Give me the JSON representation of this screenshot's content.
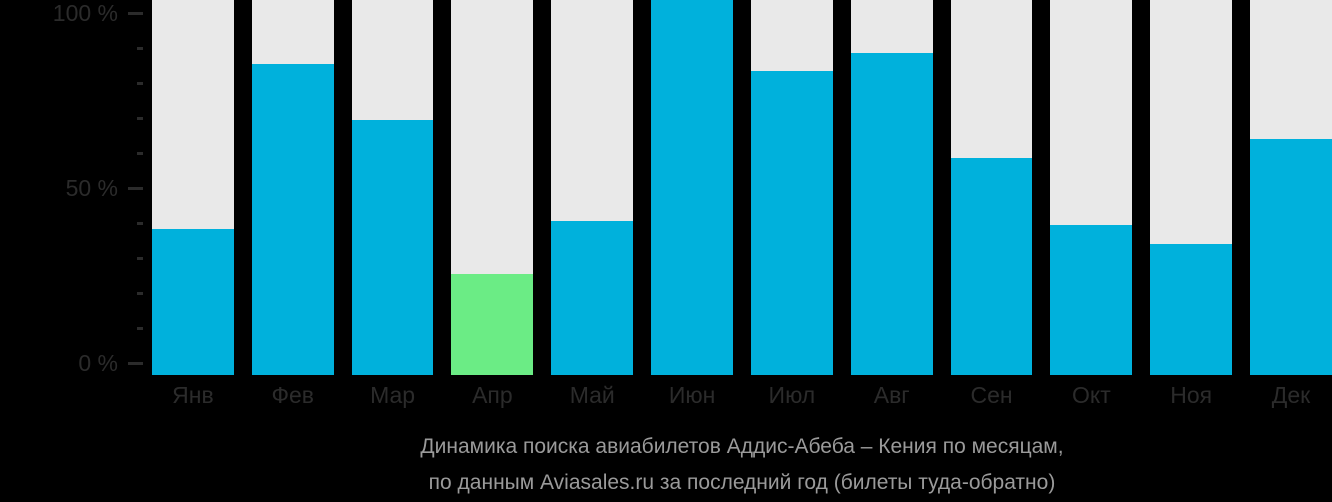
{
  "chart_data": {
    "type": "bar",
    "categories": [
      "Янв",
      "Фев",
      "Мар",
      "Апр",
      "Май",
      "Июн",
      "Июл",
      "Авг",
      "Сен",
      "Окт",
      "Ноя",
      "Дек"
    ],
    "values": [
      39,
      83,
      68,
      27,
      41,
      100,
      81,
      86,
      58,
      40,
      35,
      63
    ],
    "highlight_index": 3,
    "title": "Динамика поиска авиабилетов Аддис-Абеба – Кения по месяцам, по данным Aviasales.ru за последний год (билеты туда-обратно)",
    "xlabel": "",
    "ylabel": "",
    "ylim": [
      0,
      100
    ],
    "y_tick_step": 10,
    "grid": "off",
    "legend": "none",
    "colors": {
      "bar": "#00b1dc",
      "highlight": "#6bec85",
      "track": "#e9e9e9",
      "background": "#000000",
      "axis_text": "#2b2b2b",
      "caption_text": "#9a9a9a"
    }
  },
  "y_axis": {
    "labels": [
      "100 %",
      "50 %",
      "0 %"
    ]
  },
  "caption": {
    "line1": "Динамика поиска авиабилетов Аддис-Абеба – Кения по месяцам,",
    "line2": "по данным Aviasales.ru за последний год (билеты туда-обратно)"
  }
}
